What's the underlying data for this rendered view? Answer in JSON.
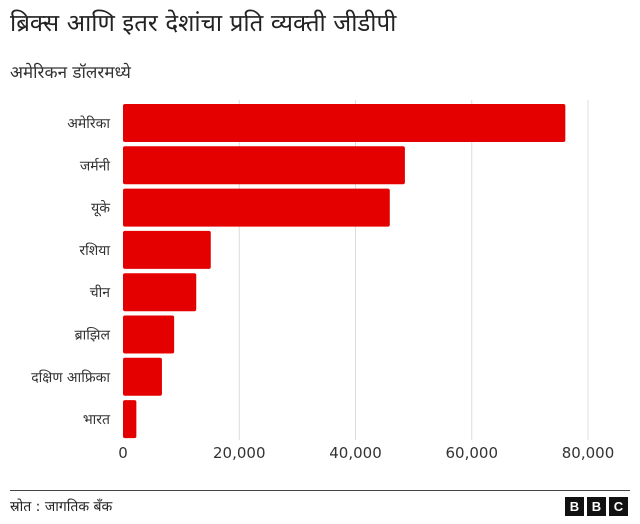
{
  "chart_data": {
    "type": "bar",
    "orientation": "horizontal",
    "title": "ब्रिक्स आणि इतर देशांचा प्रति व्यक्ती जीडीपी",
    "subtitle": "अमेरिकन डॉलरमध्ये",
    "categories": [
      "अमेरिका",
      "जर्मनी",
      "यूके",
      "रशिया",
      "चीन",
      "ब्राझिल",
      "दक्षिण आफ्रिका",
      "भारत"
    ],
    "values": [
      76100,
      48500,
      45900,
      15100,
      12600,
      8800,
      6700,
      2300
    ],
    "xlim": [
      0,
      80000
    ],
    "xticks": [
      0,
      20000,
      40000,
      60000,
      80000
    ],
    "xtick_labels": [
      "0",
      "20,000",
      "40,000",
      "60,000",
      "80,000"
    ],
    "grid": "vertical",
    "bar_color": "#e50000"
  },
  "footer": {
    "source": "स्रोत : जागतिक बँक",
    "logo": [
      "B",
      "B",
      "C"
    ]
  }
}
